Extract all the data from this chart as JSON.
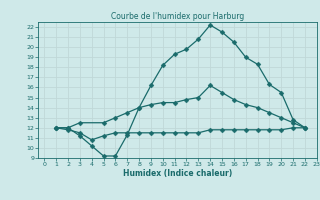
{
  "title": "Courbe de l'humidex pour Harburg",
  "xlabel": "Humidex (Indice chaleur)",
  "xlim": [
    -0.5,
    23
  ],
  "ylim": [
    9,
    22.5
  ],
  "xticks": [
    0,
    1,
    2,
    3,
    4,
    5,
    6,
    7,
    8,
    9,
    10,
    11,
    12,
    13,
    14,
    15,
    16,
    17,
    18,
    19,
    20,
    21,
    22,
    23
  ],
  "yticks": [
    9,
    10,
    11,
    12,
    13,
    14,
    15,
    16,
    17,
    18,
    19,
    20,
    21,
    22
  ],
  "bg_color": "#cfe9e9",
  "grid_color": "#c0d8d8",
  "line_color": "#1a6b6b",
  "curve1_x": [
    1,
    2,
    3,
    4,
    5,
    6,
    7,
    8,
    9,
    10,
    11,
    12,
    13,
    14,
    15,
    16,
    17,
    18,
    19,
    20,
    21,
    22
  ],
  "curve1_y": [
    12.0,
    12.0,
    11.2,
    10.2,
    9.2,
    9.2,
    11.3,
    14.0,
    16.2,
    18.2,
    19.3,
    19.8,
    20.8,
    22.2,
    21.5,
    20.5,
    19.0,
    18.3,
    16.3,
    15.5,
    12.8,
    12.0
  ],
  "curve2_x": [
    1,
    2,
    3,
    5,
    6,
    7,
    8,
    9,
    10,
    11,
    12,
    13,
    14,
    15,
    16,
    17,
    18,
    19,
    20,
    21,
    22
  ],
  "curve2_y": [
    12.0,
    12.0,
    12.5,
    12.5,
    13.0,
    13.5,
    14.0,
    14.3,
    14.5,
    14.5,
    14.8,
    15.0,
    16.2,
    15.5,
    14.8,
    14.3,
    14.0,
    13.5,
    13.0,
    12.5,
    12.0
  ],
  "curve3_x": [
    1,
    2,
    3,
    4,
    5,
    6,
    7,
    8,
    9,
    10,
    11,
    12,
    13,
    14,
    15,
    16,
    17,
    18,
    19,
    20,
    21,
    22
  ],
  "curve3_y": [
    12.0,
    11.8,
    11.5,
    10.8,
    11.2,
    11.5,
    11.5,
    11.5,
    11.5,
    11.5,
    11.5,
    11.5,
    11.5,
    11.8,
    11.8,
    11.8,
    11.8,
    11.8,
    11.8,
    11.8,
    12.0,
    12.0
  ]
}
